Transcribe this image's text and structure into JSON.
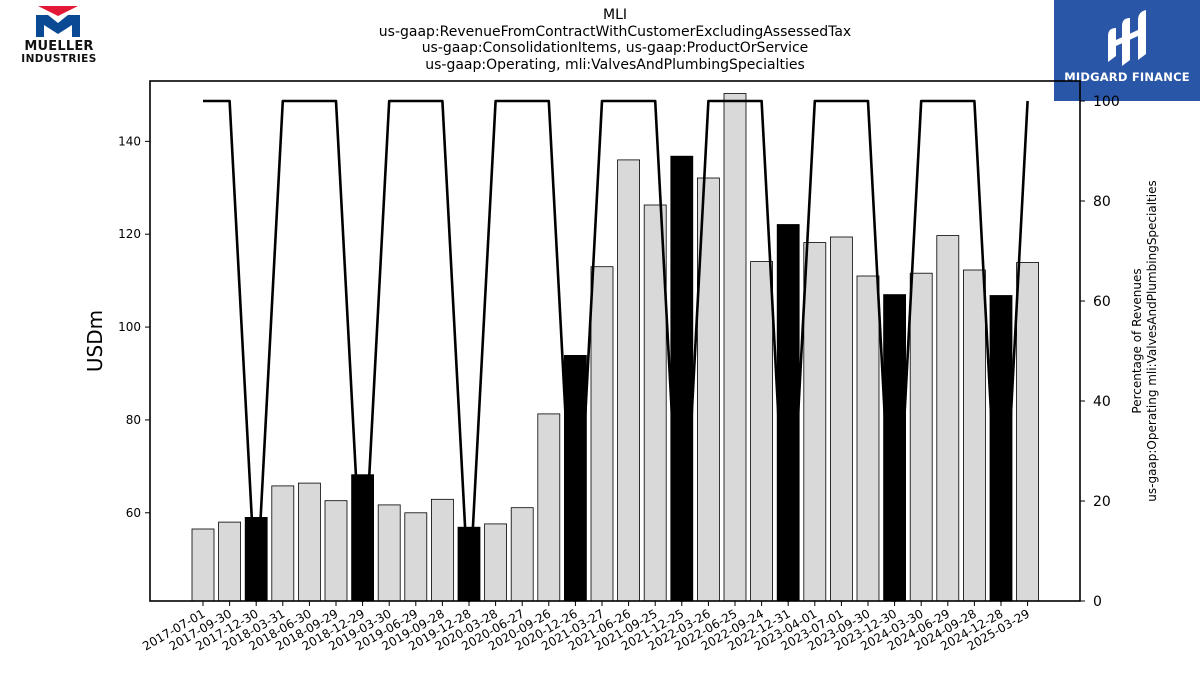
{
  "header": {
    "title_lines": [
      "MLI",
      "us-gaap:RevenueFromContractWithCustomerExcludingAssessedTax",
      "us-gaap:ConsolidationItems, us-gaap:ProductOrService",
      "us-gaap:Operating, mli:ValvesAndPlumbingSpecialties"
    ]
  },
  "logos": {
    "left": {
      "line1": "MUELLER",
      "line2": "INDUSTRIES",
      "colors": [
        "#e31837",
        "#0a4a94"
      ]
    },
    "right": {
      "brand": "MIDGARD FINANCE",
      "background": "#2a56a8"
    }
  },
  "chart_data": {
    "type": "bar",
    "ylabel": "USDm",
    "y2label_lines": [
      "Percentage of Revenues",
      "us-gaap:Operating mli:ValvesAndPlumbingSpecialties"
    ],
    "ylim": [
      41,
      153
    ],
    "y2lim": [
      0,
      104
    ],
    "yticks": [
      60,
      80,
      100,
      120,
      140
    ],
    "y2ticks": [
      0,
      20,
      40,
      60,
      80,
      100
    ],
    "categories": [
      "2017-07-01",
      "2017-09-30",
      "2017-12-30",
      "2018-03-31",
      "2018-06-30",
      "2018-09-29",
      "2018-12-29",
      "2019-03-30",
      "2019-06-29",
      "2019-09-28",
      "2019-12-28",
      "2020-03-28",
      "2020-06-27",
      "2020-09-26",
      "2020-12-26",
      "2021-03-27",
      "2021-06-26",
      "2021-09-25",
      "2021-12-25",
      "2022-03-26",
      "2022-06-25",
      "2022-09-24",
      "2022-12-31",
      "2023-04-01",
      "2023-07-01",
      "2023-09-30",
      "2023-12-30",
      "2024-03-30",
      "2024-06-29",
      "2024-09-28",
      "2024-12-28",
      "2025-03-29"
    ],
    "series": [
      {
        "kind": "bar",
        "values": [
          56.5,
          58.0,
          59.0,
          65.8,
          66.4,
          62.6,
          68.2,
          61.7,
          60.0,
          62.9,
          56.9,
          57.6,
          61.1,
          81.3,
          93.9,
          113.0,
          136.0,
          126.3,
          136.8,
          132.1,
          150.3,
          114.1,
          122.1,
          118.2,
          119.4,
          111.0,
          107.0,
          111.6,
          119.7,
          112.3,
          106.8,
          113.9
        ],
        "highlight": [
          false,
          false,
          true,
          false,
          false,
          false,
          true,
          false,
          false,
          false,
          true,
          false,
          false,
          false,
          true,
          false,
          false,
          false,
          true,
          false,
          false,
          false,
          true,
          false,
          false,
          false,
          true,
          false,
          false,
          false,
          true,
          false
        ],
        "color": "#d9d9d9",
        "highlight_color": "#000000"
      },
      {
        "kind": "line",
        "axis": "right",
        "values": [
          100,
          100,
          0,
          100,
          100,
          100,
          0,
          100,
          100,
          100,
          0,
          100,
          100,
          100,
          0,
          100,
          100,
          100,
          0,
          100,
          100,
          100,
          0,
          100,
          100,
          100,
          0,
          100,
          100,
          100,
          0,
          100
        ],
        "color": "#000000"
      }
    ]
  }
}
